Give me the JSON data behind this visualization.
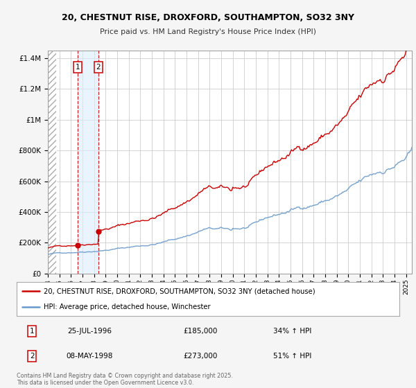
{
  "title_line1": "20, CHESTNUT RISE, DROXFORD, SOUTHAMPTON, SO32 3NY",
  "title_line2": "Price paid vs. HM Land Registry's House Price Index (HPI)",
  "legend_line1": "20, CHESTNUT RISE, DROXFORD, SOUTHAMPTON, SO32 3NY (detached house)",
  "legend_line2": "HPI: Average price, detached house, Winchester",
  "footnote": "Contains HM Land Registry data © Crown copyright and database right 2025.\nThis data is licensed under the Open Government Licence v3.0.",
  "transaction1_label": "1",
  "transaction1_date": "25-JUL-1996",
  "transaction1_price": "£185,000",
  "transaction1_hpi": "34% ↑ HPI",
  "transaction1_year": 1996.56,
  "transaction1_value": 185000,
  "transaction2_label": "2",
  "transaction2_date": "08-MAY-1998",
  "transaction2_price": "£273,000",
  "transaction2_hpi": "51% ↑ HPI",
  "transaction2_year": 1998.36,
  "transaction2_value": 273000,
  "red_color": "#cc0000",
  "blue_color": "#6699cc",
  "hatch_color": "#bbbbbb",
  "shade_color": "#ddeeff",
  "grid_color": "#cccccc",
  "bg_color": "#f5f5f5",
  "plot_bg": "#ffffff",
  "ylim_max": 1450000,
  "xmin": 1994.0,
  "xmax": 2025.5
}
